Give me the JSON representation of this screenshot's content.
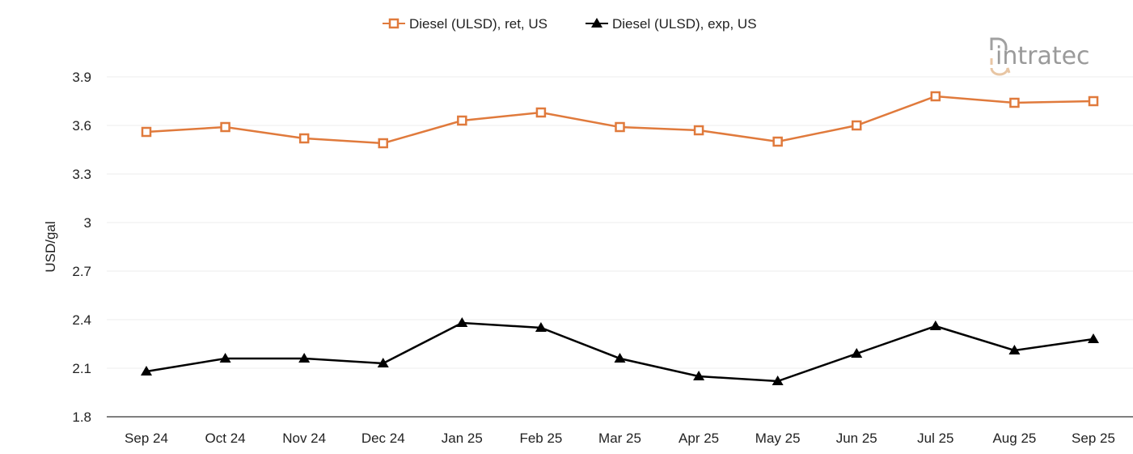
{
  "chart_data": {
    "type": "line",
    "title": "",
    "xlabel": "",
    "ylabel": "USD/gal",
    "ylim": [
      1.8,
      3.9
    ],
    "yticks": [
      "1.8",
      "2.1",
      "2.4",
      "2.7",
      "3",
      "3.3",
      "3.6",
      "3.9"
    ],
    "grid": "horizontal",
    "legend_position": "top",
    "categories": [
      "Sep 24",
      "Oct 24",
      "Nov 24",
      "Dec 24",
      "Jan 25",
      "Feb 25",
      "Mar 25",
      "Apr 25",
      "May 25",
      "Jun 25",
      "Jul 25",
      "Aug 25",
      "Sep 25"
    ],
    "series": [
      {
        "name": "Diesel (ULSD), ret, US",
        "color": "#e07a3c",
        "marker": "open-square",
        "values": [
          3.56,
          3.59,
          3.52,
          3.49,
          3.63,
          3.68,
          3.59,
          3.57,
          3.5,
          3.6,
          3.78,
          3.74,
          3.75
        ]
      },
      {
        "name": "Diesel (ULSD), exp, US",
        "color": "#000000",
        "marker": "filled-triangle",
        "values": [
          2.08,
          2.16,
          2.16,
          2.13,
          2.38,
          2.35,
          2.16,
          2.05,
          2.02,
          2.19,
          2.36,
          2.21,
          2.28
        ]
      }
    ]
  },
  "logo": {
    "text": "intratec"
  }
}
